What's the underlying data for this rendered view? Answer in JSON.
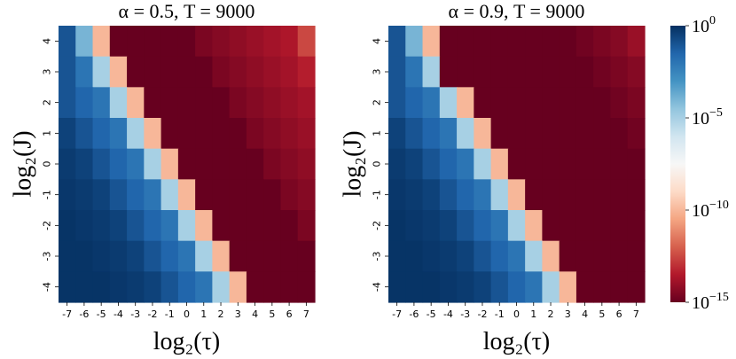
{
  "colors": {
    "cmap": [
      "#67001f",
      "#b2182b",
      "#d6604d",
      "#f4a582",
      "#fddbc7",
      "#f7f7f7",
      "#d1e5f0",
      "#92c5de",
      "#4393c3",
      "#2166ac",
      "#053061"
    ]
  },
  "chart_data": [
    {
      "type": "heatmap",
      "title": "α = 0.5, T = 9000",
      "xlabel": "log₂(τ)",
      "ylabel": "log₂(J)",
      "x": [
        "-7",
        "-6",
        "-5",
        "-4",
        "-3",
        "-2",
        "-1",
        "0",
        "1",
        "2",
        "3",
        "4",
        "5",
        "6",
        "7"
      ],
      "y": [
        "4",
        "3",
        "2",
        "1",
        "0",
        "-1",
        "-2",
        "-3",
        "-4"
      ],
      "scale": "log10",
      "vlim": [
        -15,
        0
      ],
      "log10_values": [
        [
          -1,
          -4,
          -10,
          -15,
          -15,
          -15,
          -15,
          -15,
          -14.6,
          -14.4,
          -14.2,
          -14,
          -13.8,
          -13.6,
          -12.5
        ],
        [
          -1,
          -2,
          -5,
          -10,
          -15,
          -15,
          -15,
          -15,
          -15,
          -14.6,
          -14.4,
          -14.2,
          -14,
          -13.8,
          -13.4
        ],
        [
          -1,
          -1.5,
          -2,
          -5,
          -10,
          -15,
          -15,
          -15,
          -15,
          -15,
          -14.6,
          -14.4,
          -14.2,
          -14,
          -13.8
        ],
        [
          -0.5,
          -1,
          -1.5,
          -2,
          -5,
          -10,
          -15,
          -15,
          -15,
          -15,
          -15,
          -14.6,
          -14.4,
          -14.2,
          -14
        ],
        [
          -0.3,
          -0.5,
          -1,
          -1.5,
          -2,
          -5,
          -10,
          -15,
          -15,
          -15,
          -15,
          -15,
          -14.6,
          -14.4,
          -14.2
        ],
        [
          -0.2,
          -0.3,
          -0.5,
          -1,
          -1.5,
          -2,
          -5,
          -10,
          -15,
          -15,
          -15,
          -15,
          -15,
          -14.6,
          -14.4
        ],
        [
          -0.1,
          -0.2,
          -0.3,
          -0.5,
          -1,
          -1.5,
          -2,
          -5,
          -10,
          -15,
          -15,
          -15,
          -15,
          -15,
          -14.6
        ],
        [
          -0.1,
          -0.1,
          -0.2,
          -0.3,
          -0.5,
          -1,
          -1.5,
          -2,
          -5,
          -10,
          -15,
          -15,
          -15,
          -15,
          -15
        ],
        [
          -0.1,
          -0.1,
          -0.1,
          -0.2,
          -0.3,
          -0.5,
          -1,
          -1.5,
          -2,
          -5,
          -10,
          -15,
          -15,
          -15,
          -15
        ]
      ]
    },
    {
      "type": "heatmap",
      "title": "α = 0.9, T = 9000",
      "xlabel": "log₂(τ)",
      "ylabel": "log₂(J)",
      "x": [
        "-7",
        "-6",
        "-5",
        "-4",
        "-3",
        "-2",
        "-1",
        "0",
        "1",
        "2",
        "3",
        "4",
        "5",
        "6",
        "7"
      ],
      "y": [
        "4",
        "3",
        "2",
        "1",
        "0",
        "-1",
        "-2",
        "-3",
        "-4"
      ],
      "scale": "log10",
      "vlim": [
        -15,
        0
      ],
      "log10_values": [
        [
          -1,
          -4,
          -10,
          -15,
          -15,
          -15,
          -15,
          -15,
          -15,
          -15,
          -15,
          -14.8,
          -14.6,
          -14.4,
          -14
        ],
        [
          -1,
          -2,
          -5,
          -15,
          -15,
          -15,
          -15,
          -15,
          -15,
          -15,
          -15,
          -15,
          -14.8,
          -14.6,
          -14.4
        ],
        [
          -1,
          -1.5,
          -2,
          -5,
          -10,
          -15,
          -15,
          -15,
          -15,
          -15,
          -15,
          -15,
          -15,
          -14.8,
          -14.6
        ],
        [
          -0.5,
          -1,
          -1.5,
          -2,
          -5,
          -10,
          -15,
          -15,
          -15,
          -15,
          -15,
          -15,
          -15,
          -15,
          -14.8
        ],
        [
          -0.3,
          -0.5,
          -1,
          -1.5,
          -2,
          -5,
          -10,
          -15,
          -15,
          -15,
          -15,
          -15,
          -15,
          -15,
          -15
        ],
        [
          -0.2,
          -0.3,
          -0.5,
          -1,
          -1.5,
          -2,
          -5,
          -10,
          -15,
          -15,
          -15,
          -15,
          -15,
          -15,
          -15
        ],
        [
          -0.1,
          -0.2,
          -0.3,
          -0.5,
          -1,
          -1.5,
          -2,
          -5,
          -10,
          -15,
          -15,
          -15,
          -15,
          -15,
          -15
        ],
        [
          -0.1,
          -0.1,
          -0.2,
          -0.3,
          -0.5,
          -1,
          -1.5,
          -2,
          -5,
          -10,
          -15,
          -15,
          -15,
          -15,
          -15
        ],
        [
          -0.1,
          -0.1,
          -0.1,
          -0.2,
          -0.3,
          -0.5,
          -1,
          -1.5,
          -2,
          -5,
          -10,
          -15,
          -15,
          -15,
          -15
        ]
      ]
    }
  ],
  "colorbar": {
    "ticks": [
      {
        "value": 0,
        "base": "10",
        "exp": "0"
      },
      {
        "value": -5,
        "base": "10",
        "exp": "−5"
      },
      {
        "value": -10,
        "base": "10",
        "exp": "−10"
      },
      {
        "value": -15,
        "base": "10",
        "exp": "−15"
      }
    ]
  }
}
